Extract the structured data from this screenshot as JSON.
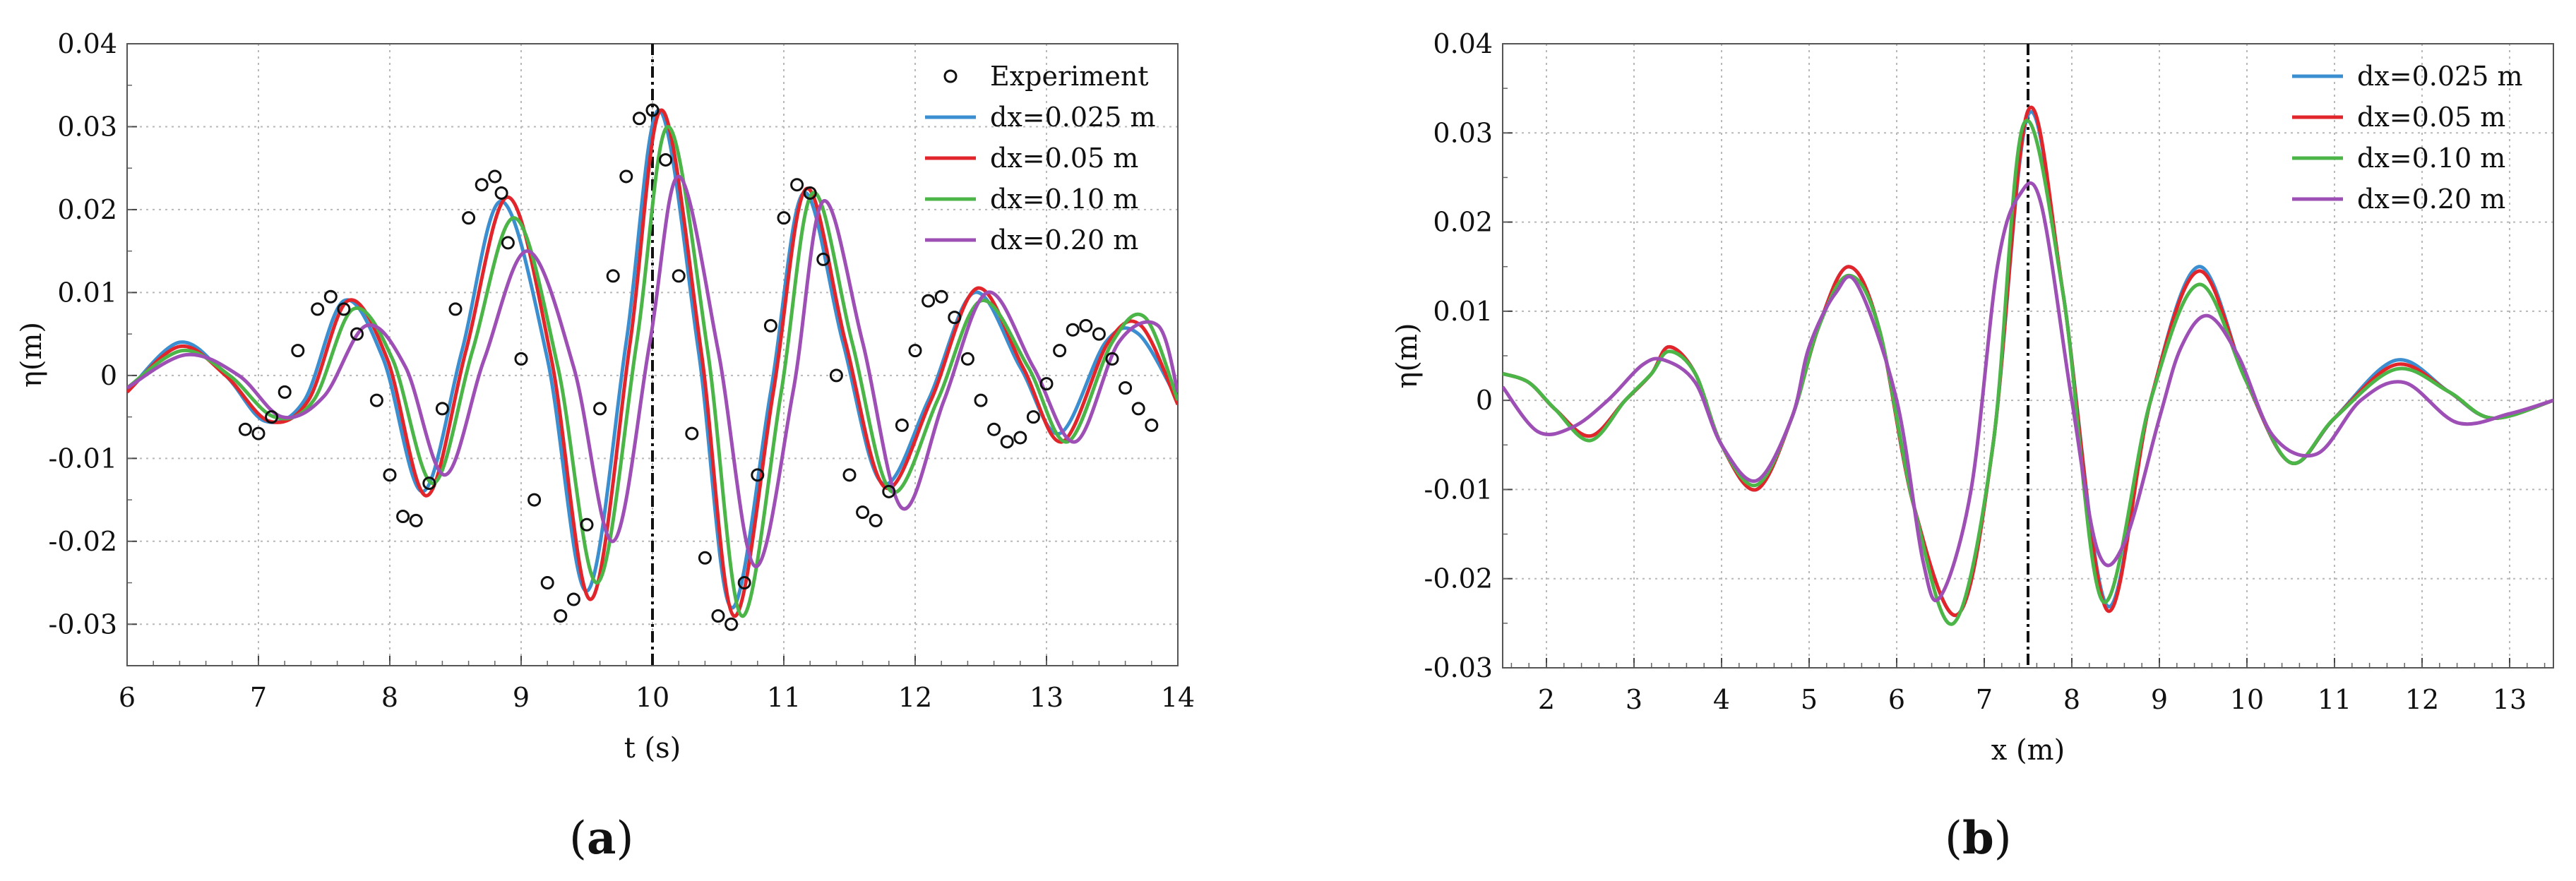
{
  "chart_data": [
    {
      "id": "a",
      "type": "line",
      "panel_label": "a",
      "xlabel": "t (s)",
      "ylabel": "η(m)",
      "xlim": [
        6,
        14
      ],
      "ylim": [
        -0.035,
        0.04
      ],
      "xticks": [
        "6",
        "7",
        "8",
        "9",
        "10",
        "11",
        "12",
        "13",
        "14"
      ],
      "yticks": [
        "-0.03",
        "-0.02",
        "-0.01",
        "0",
        "0.01",
        "0.02",
        "0.03",
        "0.04"
      ],
      "grid": true,
      "legend_position": "top-right",
      "vline_x": 10,
      "scatter": {
        "name": "Experiment",
        "x": [
          6.9,
          7.0,
          7.1,
          7.2,
          7.3,
          7.45,
          7.55,
          7.65,
          7.75,
          7.9,
          8.0,
          8.1,
          8.2,
          8.3,
          8.4,
          8.5,
          8.6,
          8.7,
          8.8,
          8.85,
          8.9,
          9.0,
          9.1,
          9.2,
          9.3,
          9.4,
          9.5,
          9.6,
          9.7,
          9.8,
          9.9,
          10.0,
          10.1,
          10.2,
          10.3,
          10.4,
          10.5,
          10.6,
          10.7,
          10.8,
          10.9,
          11.0,
          11.1,
          11.2,
          11.3,
          11.4,
          11.5,
          11.6,
          11.7,
          11.8,
          11.9,
          12.0,
          12.1,
          12.2,
          12.3,
          12.4,
          12.5,
          12.6,
          12.7,
          12.8,
          12.9,
          13.0,
          13.1,
          13.2,
          13.3,
          13.4,
          13.5,
          13.6,
          13.7,
          13.8
        ],
        "y": [
          -0.0065,
          -0.007,
          -0.005,
          -0.002,
          0.003,
          0.008,
          0.0095,
          0.008,
          0.005,
          -0.003,
          -0.012,
          -0.017,
          -0.0175,
          -0.013,
          -0.004,
          0.008,
          0.019,
          0.023,
          0.024,
          0.022,
          0.016,
          0.002,
          -0.015,
          -0.025,
          -0.029,
          -0.027,
          -0.018,
          -0.004,
          0.012,
          0.024,
          0.031,
          0.032,
          0.026,
          0.012,
          -0.007,
          -0.022,
          -0.029,
          -0.03,
          -0.025,
          -0.012,
          0.006,
          0.019,
          0.023,
          0.022,
          0.014,
          0.0,
          -0.012,
          -0.0165,
          -0.0175,
          -0.014,
          -0.006,
          0.003,
          0.009,
          0.0095,
          0.007,
          0.002,
          -0.003,
          -0.0065,
          -0.008,
          -0.0075,
          -0.005,
          -0.001,
          0.003,
          0.0055,
          0.006,
          0.005,
          0.002,
          -0.0015,
          -0.004,
          -0.006
        ]
      },
      "series": [
        {
          "name": "dx=0.025 m",
          "color": "#3b8fd0",
          "t": [
            6,
            6.4,
            6.75,
            7.05,
            7.35,
            7.65,
            7.95,
            8.25,
            8.55,
            8.85,
            9.2,
            9.5,
            9.8,
            10.05,
            10.35,
            10.6,
            10.9,
            11.15,
            11.45,
            11.75,
            12.1,
            12.45,
            12.8,
            13.1,
            13.45,
            13.7,
            14
          ],
          "y": [
            -0.002,
            0.004,
            0.0,
            -0.0055,
            -0.003,
            0.009,
            0.002,
            -0.014,
            0.003,
            0.021,
            0.002,
            -0.026,
            0.004,
            0.032,
            0.003,
            -0.028,
            -0.002,
            0.022,
            0.004,
            -0.013,
            -0.003,
            0.01,
            0.001,
            -0.007,
            0.004,
            0.005,
            -0.003
          ]
        },
        {
          "name": "dx=0.05 m",
          "color": "#e2252b",
          "t": [
            6,
            6.4,
            6.75,
            7.08,
            7.38,
            7.68,
            7.98,
            8.28,
            8.58,
            8.9,
            9.23,
            9.53,
            9.83,
            10.07,
            10.37,
            10.62,
            10.92,
            11.17,
            11.47,
            11.77,
            12.12,
            12.47,
            12.82,
            13.12,
            13.47,
            13.72,
            14
          ],
          "y": [
            -0.002,
            0.0035,
            0.0,
            -0.0055,
            -0.003,
            0.009,
            0.002,
            -0.0145,
            0.003,
            0.0215,
            0.002,
            -0.027,
            0.004,
            0.032,
            0.003,
            -0.029,
            -0.002,
            0.0225,
            0.004,
            -0.0135,
            -0.003,
            0.0105,
            0.001,
            -0.008,
            0.004,
            0.006,
            -0.0035
          ]
        },
        {
          "name": "dx=0.10 m",
          "color": "#4bb548",
          "t": [
            6,
            6.42,
            6.78,
            7.12,
            7.42,
            7.72,
            8.02,
            8.33,
            8.63,
            8.95,
            9.28,
            9.58,
            9.88,
            10.12,
            10.42,
            10.68,
            10.98,
            11.22,
            11.52,
            11.82,
            12.17,
            12.5,
            12.86,
            13.16,
            13.5,
            13.75,
            14
          ],
          "y": [
            -0.0015,
            0.003,
            0.0,
            -0.005,
            -0.003,
            0.008,
            0.002,
            -0.013,
            0.003,
            0.019,
            0.001,
            -0.025,
            0.004,
            0.03,
            0.003,
            -0.029,
            -0.002,
            0.022,
            0.004,
            -0.014,
            -0.003,
            0.009,
            0.001,
            -0.008,
            0.004,
            0.007,
            -0.003
          ]
        },
        {
          "name": "dx=0.20 m",
          "color": "#9d4fb5",
          "t": [
            6,
            6.45,
            6.85,
            7.18,
            7.5,
            7.82,
            8.12,
            8.42,
            8.72,
            9.05,
            9.4,
            9.7,
            9.98,
            10.2,
            10.5,
            10.78,
            11.07,
            11.3,
            11.6,
            11.9,
            12.22,
            12.55,
            12.9,
            13.22,
            13.55,
            13.85,
            14
          ],
          "y": [
            -0.0015,
            0.0025,
            0.0,
            -0.005,
            -0.0025,
            0.006,
            0.001,
            -0.012,
            0.002,
            0.015,
            0.001,
            -0.02,
            0.004,
            0.024,
            0.003,
            -0.023,
            -0.002,
            0.021,
            0.004,
            -0.016,
            -0.003,
            0.01,
            0.001,
            -0.008,
            0.004,
            0.006,
            -0.002
          ]
        }
      ]
    },
    {
      "id": "b",
      "type": "line",
      "panel_label": "b",
      "xlabel": "x (m)",
      "ylabel": "η(m)",
      "xlim": [
        1.5,
        13.5
      ],
      "ylim": [
        -0.03,
        0.04
      ],
      "xticks": [
        "2",
        "3",
        "4",
        "5",
        "6",
        "7",
        "8",
        "9",
        "10",
        "11",
        "12",
        "13"
      ],
      "yticks": [
        "-0.03",
        "-0.02",
        "-0.01",
        "0",
        "0.01",
        "0.02",
        "0.03",
        "0.04"
      ],
      "grid": true,
      "legend_position": "top-right",
      "vline_x": 7.5,
      "series": [
        {
          "name": "dx=0.025 m",
          "color": "#3b8fd0",
          "x": [
            1.5,
            1.8,
            2.1,
            2.5,
            2.9,
            3.2,
            3.4,
            3.7,
            4.0,
            4.4,
            4.8,
            5.1,
            5.45,
            5.8,
            6.2,
            6.7,
            7.1,
            7.5,
            7.9,
            8.4,
            8.9,
            9.45,
            10.0,
            10.5,
            11.0,
            11.7,
            12.3,
            12.8,
            13.5
          ],
          "y": [
            0.003,
            0.002,
            -0.001,
            -0.004,
            0.0,
            0.003,
            0.006,
            0.003,
            -0.005,
            -0.01,
            -0.002,
            0.008,
            0.015,
            0.008,
            -0.012,
            -0.024,
            -0.005,
            0.032,
            0.012,
            -0.023,
            0.0,
            0.015,
            0.002,
            -0.007,
            -0.002,
            0.0045,
            0.001,
            -0.002,
            0.0
          ]
        },
        {
          "name": "dx=0.05 m",
          "color": "#e2252b",
          "x": [
            1.5,
            1.8,
            2.1,
            2.5,
            2.9,
            3.2,
            3.4,
            3.7,
            4.0,
            4.4,
            4.8,
            5.1,
            5.45,
            5.8,
            6.2,
            6.7,
            7.1,
            7.5,
            7.9,
            8.4,
            8.9,
            9.45,
            10.0,
            10.5,
            11.0,
            11.7,
            12.3,
            12.8,
            13.5
          ],
          "y": [
            0.003,
            0.002,
            -0.001,
            -0.004,
            0.0,
            0.003,
            0.006,
            0.003,
            -0.005,
            -0.01,
            -0.002,
            0.008,
            0.015,
            0.008,
            -0.012,
            -0.024,
            -0.005,
            0.0325,
            0.012,
            -0.0235,
            0.0,
            0.0145,
            0.002,
            -0.007,
            -0.002,
            0.004,
            0.001,
            -0.002,
            0.0
          ]
        },
        {
          "name": "dx=0.10 m",
          "color": "#4bb548",
          "x": [
            1.5,
            1.8,
            2.1,
            2.5,
            2.9,
            3.2,
            3.4,
            3.7,
            4.0,
            4.4,
            4.8,
            5.1,
            5.45,
            5.8,
            6.2,
            6.65,
            7.1,
            7.45,
            7.9,
            8.35,
            8.9,
            9.45,
            10.0,
            10.5,
            11.0,
            11.7,
            12.3,
            12.8,
            13.5
          ],
          "y": [
            0.003,
            0.002,
            -0.001,
            -0.0045,
            0.0,
            0.003,
            0.0055,
            0.003,
            -0.005,
            -0.0095,
            -0.002,
            0.008,
            0.014,
            0.008,
            -0.012,
            -0.025,
            -0.005,
            0.031,
            0.012,
            -0.0225,
            0.0,
            0.013,
            0.002,
            -0.007,
            -0.002,
            0.0035,
            0.001,
            -0.002,
            0.0
          ]
        },
        {
          "name": "dx=0.20 m",
          "color": "#9d4fb5",
          "x": [
            1.5,
            1.9,
            2.3,
            2.7,
            3.1,
            3.35,
            3.7,
            4.0,
            4.4,
            4.8,
            5.0,
            5.3,
            5.55,
            6.0,
            6.3,
            6.5,
            6.85,
            7.15,
            7.4,
            7.65,
            8.0,
            8.3,
            8.6,
            9.0,
            9.25,
            9.55,
            9.9,
            10.3,
            10.8,
            11.3,
            11.8,
            12.4,
            13.0,
            13.5
          ],
          "y": [
            0.0015,
            -0.0035,
            -0.003,
            0.0,
            0.004,
            0.0045,
            0.002,
            -0.005,
            -0.009,
            -0.002,
            0.006,
            0.012,
            0.013,
            0.0,
            -0.018,
            -0.022,
            -0.01,
            0.015,
            0.023,
            0.022,
            0.0,
            -0.017,
            -0.016,
            -0.002,
            0.006,
            0.0095,
            0.005,
            -0.004,
            -0.006,
            0.0,
            0.002,
            -0.0025,
            -0.0015,
            0.0
          ]
        }
      ]
    }
  ]
}
